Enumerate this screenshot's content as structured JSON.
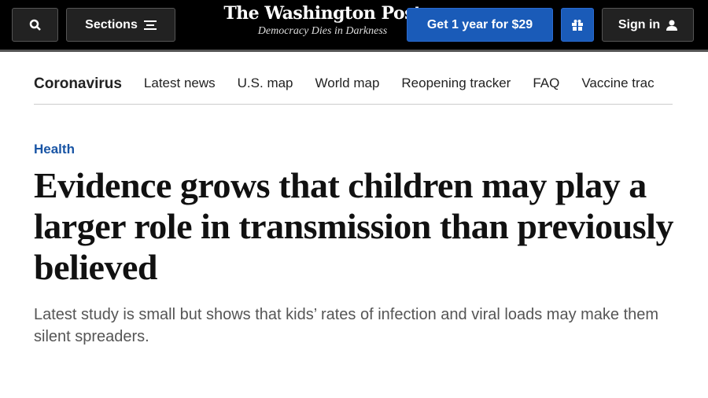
{
  "header": {
    "search_icon": "search-icon",
    "sections_label": "Sections",
    "logo": "The Washington Post",
    "tagline": "Democracy Dies in Darkness",
    "subscribe_label": "Get 1 year for $29",
    "gift_icon": "gift-icon",
    "signin_label": "Sign in",
    "colors": {
      "accent": "#1a5bb8"
    }
  },
  "nav": {
    "items": [
      "Coronavirus",
      "Latest news",
      "U.S. map",
      "World map",
      "Reopening tracker",
      "FAQ",
      "Vaccine trac"
    ]
  },
  "article": {
    "kicker": "Health",
    "headline": "Evidence grows that children may play a larger role in transmission than previously believed",
    "subhead": "Latest study is small but shows that kids’ rates of infection and viral loads may make them silent spreaders."
  }
}
